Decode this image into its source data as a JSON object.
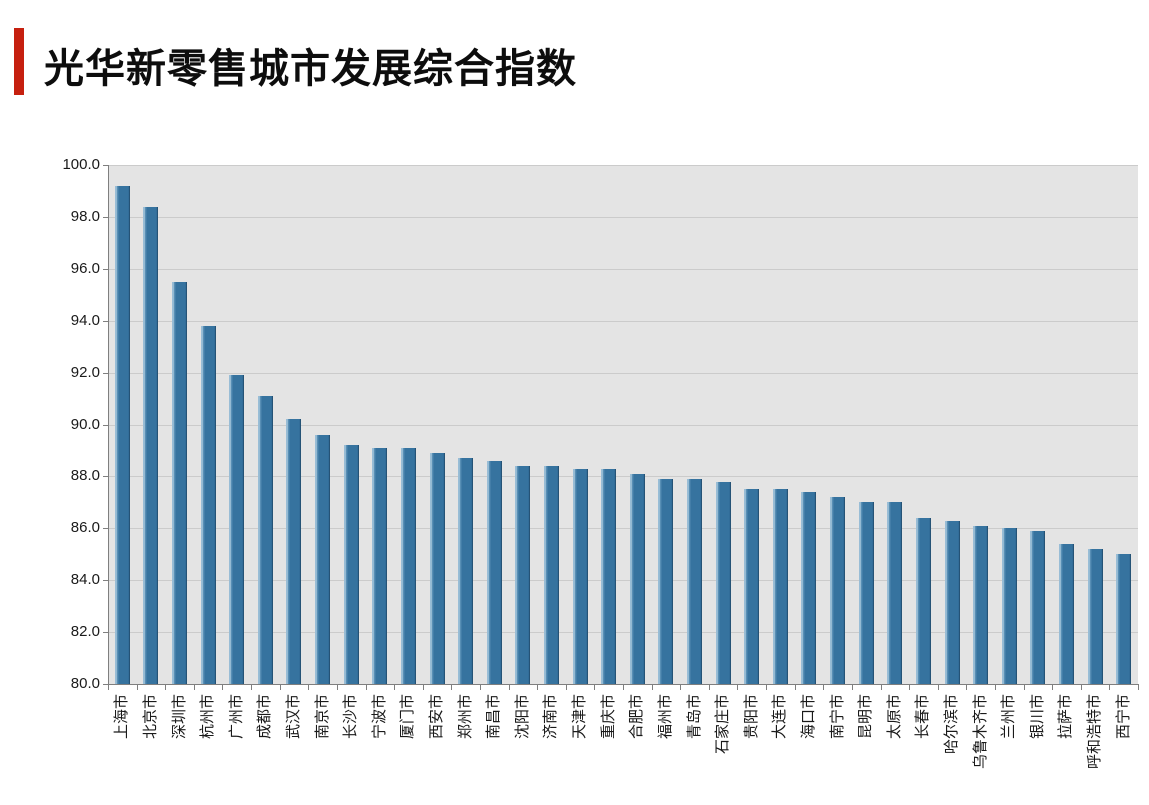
{
  "header": {
    "title": "光华新零售城市发展综合指数",
    "accent_color": "#c6200f"
  },
  "chart_data": {
    "type": "bar",
    "title": "光华新零售城市发展综合指数",
    "xlabel": "",
    "ylabel": "",
    "legend": null,
    "grid": "horizontal",
    "plot_bg_color": "#e4e4e4",
    "gridline_color": "#cbcbcb",
    "axis_color": "#7f7f7f",
    "bar_color": "#36739f",
    "ylim": [
      80.0,
      100.0
    ],
    "ytick_step": 2.0,
    "ytick_labels": [
      "80.0",
      "82.0",
      "84.0",
      "86.0",
      "88.0",
      "90.0",
      "92.0",
      "94.0",
      "96.0",
      "98.0",
      "100.0"
    ],
    "categories": [
      "上海市",
      "北京市",
      "深圳市",
      "杭州市",
      "广州市",
      "成都市",
      "武汉市",
      "南京市",
      "长沙市",
      "宁波市",
      "厦门市",
      "西安市",
      "郑州市",
      "南昌市",
      "沈阳市",
      "济南市",
      "天津市",
      "重庆市",
      "合肥市",
      "福州市",
      "青岛市",
      "石家庄市",
      "贵阳市",
      "大连市",
      "海口市",
      "南宁市",
      "昆明市",
      "太原市",
      "长春市",
      "哈尔滨市",
      "乌鲁木齐市",
      "兰州市",
      "银川市",
      "拉萨市",
      "呼和浩特市",
      "西宁市"
    ],
    "values": [
      99.2,
      98.4,
      95.5,
      93.8,
      91.9,
      91.1,
      90.2,
      89.6,
      89.2,
      89.1,
      89.1,
      88.9,
      88.7,
      88.6,
      88.4,
      88.4,
      88.3,
      88.3,
      88.1,
      87.9,
      87.9,
      87.8,
      87.5,
      87.5,
      87.4,
      87.2,
      87.0,
      87.0,
      86.4,
      86.3,
      86.1,
      86.0,
      85.9,
      85.4,
      85.2,
      85.0
    ]
  }
}
